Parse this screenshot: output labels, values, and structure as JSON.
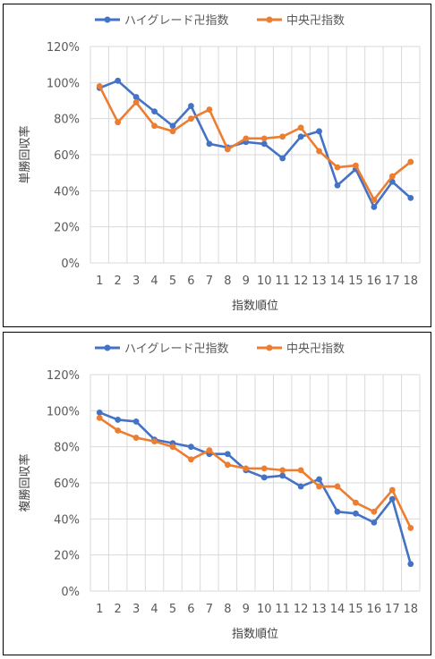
{
  "colors": {
    "blue": "#4472C4",
    "orange": "#ED7D31",
    "grid": "#D9D9D9",
    "text": "#595959"
  },
  "chart_data": [
    {
      "type": "line",
      "title": "",
      "xlabel": "指数順位",
      "ylabel": "単勝回収率",
      "categories": [
        "1",
        "2",
        "3",
        "4",
        "5",
        "6",
        "7",
        "8",
        "9",
        "10",
        "11",
        "12",
        "13",
        "14",
        "15",
        "16",
        "17",
        "18"
      ],
      "ylim": [
        0,
        120
      ],
      "yticks": [
        "0%",
        "20%",
        "40%",
        "60%",
        "80%",
        "100%",
        "120%"
      ],
      "grid": "vertical-and-horizontal",
      "legend": "top",
      "series": [
        {
          "name": "ハイグレード卍指数",
          "color": "#4472C4",
          "values": [
            97,
            101,
            92,
            84,
            76,
            87,
            66,
            64,
            67,
            66,
            58,
            70,
            73,
            43,
            52,
            31,
            45,
            36
          ]
        },
        {
          "name": "中央卍指数",
          "color": "#ED7D31",
          "values": [
            98,
            78,
            89,
            76,
            73,
            80,
            85,
            63,
            69,
            69,
            70,
            75,
            62,
            53,
            54,
            35,
            48,
            56
          ]
        }
      ]
    },
    {
      "type": "line",
      "title": "",
      "xlabel": "指数順位",
      "ylabel": "複勝回収率",
      "categories": [
        "1",
        "2",
        "3",
        "4",
        "5",
        "6",
        "7",
        "8",
        "9",
        "10",
        "11",
        "12",
        "13",
        "14",
        "15",
        "16",
        "17",
        "18"
      ],
      "ylim": [
        0,
        120
      ],
      "yticks": [
        "0%",
        "20%",
        "40%",
        "60%",
        "80%",
        "100%",
        "120%"
      ],
      "grid": "vertical-and-horizontal",
      "legend": "top",
      "series": [
        {
          "name": "ハイグレード卍指数",
          "color": "#4472C4",
          "values": [
            99,
            95,
            94,
            84,
            82,
            80,
            76,
            76,
            67,
            63,
            64,
            58,
            62,
            44,
            43,
            38,
            51,
            15
          ]
        },
        {
          "name": "中央卍指数",
          "color": "#ED7D31",
          "values": [
            96,
            89,
            85,
            83,
            80,
            73,
            78,
            70,
            68,
            68,
            67,
            67,
            58,
            58,
            49,
            44,
            56,
            35
          ]
        }
      ]
    }
  ]
}
